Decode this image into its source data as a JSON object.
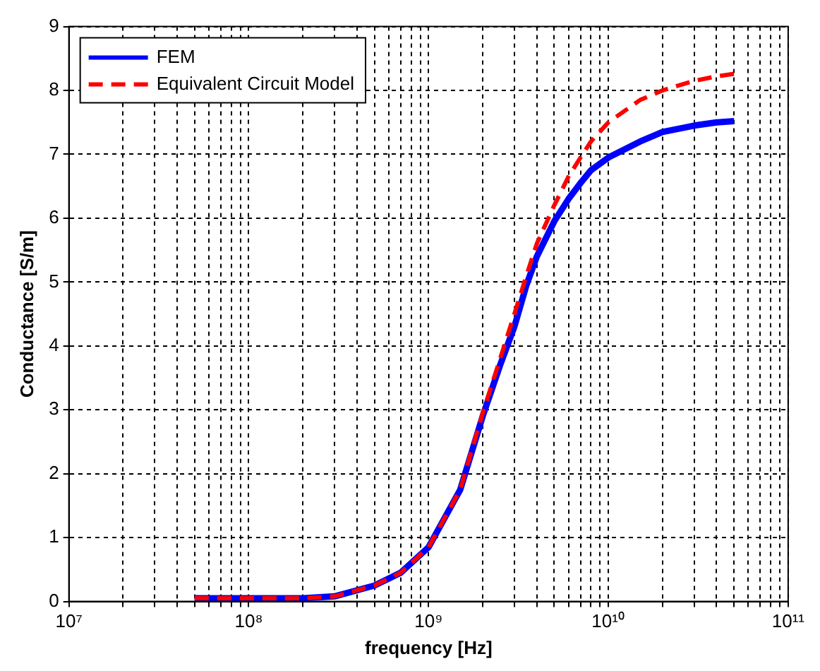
{
  "chart_data": {
    "type": "line",
    "xlabel": "frequency [Hz]",
    "ylabel": "Conductance [S/m]",
    "x": [
      50000000.0,
      100000000.0,
      200000000.0,
      300000000.0,
      500000000.0,
      700000000.0,
      1000000000.0,
      1500000000.0,
      2000000000.0,
      2500000000.0,
      3000000000.0,
      3500000000.0,
      4000000000.0,
      5000000000.0,
      6000000000.0,
      7000000000.0,
      8000000000.0,
      10000000000.0,
      15000000000.0,
      20000000000.0,
      30000000000.0,
      40000000000.0,
      50000000000.0
    ],
    "series": [
      {
        "name": "FEM",
        "color": "#0000ff",
        "line_style": "solid",
        "values": [
          0.05,
          0.05,
          0.05,
          0.08,
          0.25,
          0.45,
          0.85,
          1.75,
          2.9,
          3.7,
          4.3,
          4.95,
          5.4,
          5.95,
          6.3,
          6.55,
          6.75,
          6.95,
          7.2,
          7.35,
          7.45,
          7.5,
          7.52
        ]
      },
      {
        "name": "Equivalent Circuit Model",
        "color": "#ff0000",
        "line_style": "dashed",
        "values": [
          0.05,
          0.05,
          0.05,
          0.08,
          0.25,
          0.45,
          0.85,
          1.75,
          2.95,
          3.8,
          4.5,
          5.1,
          5.6,
          6.2,
          6.65,
          6.95,
          7.2,
          7.5,
          7.85,
          8.0,
          8.15,
          8.22,
          8.26
        ]
      }
    ],
    "log": "x",
    "xlim": [
      10000000.0,
      100000000000.0
    ],
    "xticks": [
      {
        "value": 10000000.0,
        "label": "10⁷"
      },
      {
        "value": 20000000.0,
        "label": null
      },
      {
        "value": 30000000.0,
        "label": null
      },
      {
        "value": 40000000.0,
        "label": null
      },
      {
        "value": 50000000.0,
        "label": null
      },
      {
        "value": 60000000.0,
        "label": null
      },
      {
        "value": 70000000.0,
        "label": null
      },
      {
        "value": 80000000.0,
        "label": null
      },
      {
        "value": 90000000.0,
        "label": null
      },
      {
        "value": 100000000.0,
        "label": "10⁸"
      },
      {
        "value": 200000000.0,
        "label": null
      },
      {
        "value": 300000000.0,
        "label": null
      },
      {
        "value": 400000000.0,
        "label": null
      },
      {
        "value": 500000000.0,
        "label": null
      },
      {
        "value": 600000000.0,
        "label": null
      },
      {
        "value": 700000000.0,
        "label": null
      },
      {
        "value": 800000000.0,
        "label": null
      },
      {
        "value": 900000000.0,
        "label": null
      },
      {
        "value": 1000000000.0,
        "label": "10⁹"
      },
      {
        "value": 2000000000.0,
        "label": null
      },
      {
        "value": 3000000000.0,
        "label": null
      },
      {
        "value": 4000000000.0,
        "label": null
      },
      {
        "value": 5000000000.0,
        "label": null
      },
      {
        "value": 6000000000.0,
        "label": null
      },
      {
        "value": 7000000000.0,
        "label": null
      },
      {
        "value": 8000000000.0,
        "label": null
      },
      {
        "value": 9000000000.0,
        "label": null
      },
      {
        "value": 10000000000.0,
        "label": "10¹⁰"
      },
      {
        "value": 20000000000.0,
        "label": null
      },
      {
        "value": 30000000000.0,
        "label": null
      },
      {
        "value": 40000000000.0,
        "label": null
      },
      {
        "value": 50000000000.0,
        "label": null
      },
      {
        "value": 60000000000.0,
        "label": null
      },
      {
        "value": 70000000000.0,
        "label": null
      },
      {
        "value": 80000000000.0,
        "label": null
      },
      {
        "value": 90000000000.0,
        "label": null
      },
      {
        "value": 100000000000.0,
        "label": "10¹¹"
      }
    ],
    "ylim": [
      0,
      9
    ],
    "yticks": [
      0,
      1,
      2,
      3,
      4,
      5,
      6,
      7,
      8,
      9
    ],
    "grid": true,
    "legend": "top left"
  }
}
